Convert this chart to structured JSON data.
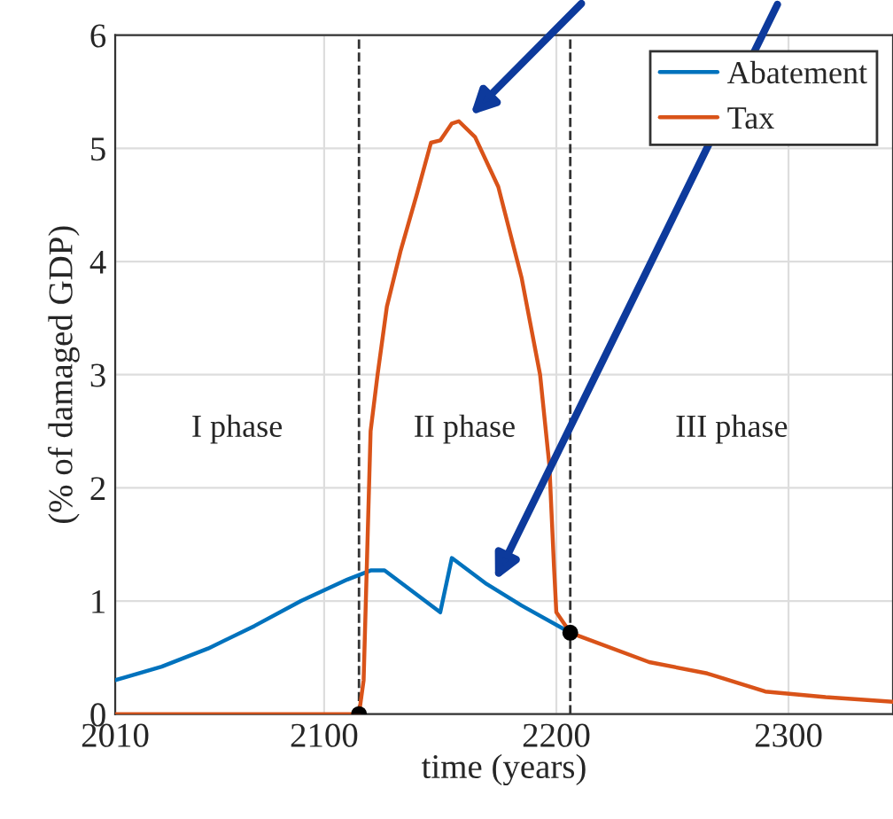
{
  "chart_data": {
    "type": "line",
    "xlabel": "time (years)",
    "ylabel": "(% of damaged GDP)",
    "xlim": [
      2010,
      2345
    ],
    "xticks": [
      2010,
      2100,
      2200,
      2300
    ],
    "ylim": [
      0,
      6
    ],
    "yticks": [
      0,
      1,
      2,
      3,
      4,
      5,
      6
    ],
    "grid": true,
    "legend": "top right",
    "line_style": "solid",
    "series": [
      {
        "name": "Abatement",
        "color": "#0072bd",
        "x": [
          2010,
          2030,
          2050,
          2070,
          2090,
          2110,
          2120,
          2126,
          2150,
          2155,
          2170,
          2185,
          2206
        ],
        "values": [
          0.3,
          0.42,
          0.58,
          0.78,
          1.0,
          1.19,
          1.27,
          1.27,
          0.9,
          1.38,
          1.15,
          0.96,
          0.72
        ]
      },
      {
        "name": "Tax",
        "color": "#d95319",
        "x": [
          2010,
          2115,
          2117,
          2118.5,
          2120,
          2123,
          2127,
          2133,
          2140,
          2146,
          2150,
          2155,
          2158,
          2165,
          2175,
          2185,
          2193,
          2197,
          2199,
          2200,
          2206,
          2240,
          2265,
          2290,
          2316,
          2345
        ],
        "values": [
          0,
          0,
          0.3,
          1.4,
          2.5,
          3.0,
          3.6,
          4.1,
          4.6,
          5.05,
          5.07,
          5.22,
          5.24,
          5.1,
          4.66,
          3.86,
          3.0,
          2.2,
          1.3,
          0.9,
          0.72,
          0.46,
          0.36,
          0.2,
          0.15,
          0.11
        ]
      },
      {
        "type": "scatter",
        "color": "#000000",
        "x": [
          2115,
          2206
        ],
        "values": [
          0,
          0.72
        ]
      }
    ],
    "ref_lines": [
      {
        "axis": "x",
        "value": 2115,
        "color": "#333333",
        "line_style": "dashed"
      },
      {
        "axis": "x",
        "value": 2206,
        "color": "#333333",
        "line_style": "dashed"
      }
    ],
    "annotations": [
      "I phase",
      "II phase",
      "III phase"
    ]
  }
}
